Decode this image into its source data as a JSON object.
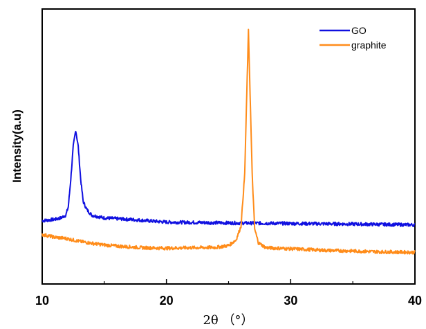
{
  "chart_data": {
    "type": "line",
    "xlabel": "2θ （°）",
    "ylabel": "Intensity(a.u)",
    "xlim": [
      10,
      40
    ],
    "ylim": [
      0,
      1
    ],
    "x_ticks": [
      10,
      20,
      30,
      40
    ],
    "y_ticks_labeled": false,
    "grid": false,
    "legend": "top-right",
    "series": [
      {
        "name": "GO",
        "color": "#1010e0",
        "points": [
          [
            10,
            0.23
          ],
          [
            11,
            0.235
          ],
          [
            11.5,
            0.24
          ],
          [
            11.9,
            0.25
          ],
          [
            12.1,
            0.28
          ],
          [
            12.3,
            0.38
          ],
          [
            12.5,
            0.5
          ],
          [
            12.7,
            0.56
          ],
          [
            12.9,
            0.5
          ],
          [
            13.1,
            0.38
          ],
          [
            13.3,
            0.3
          ],
          [
            13.6,
            0.27
          ],
          [
            14,
            0.25
          ],
          [
            15,
            0.24
          ],
          [
            17,
            0.235
          ],
          [
            20,
            0.225
          ],
          [
            25,
            0.222
          ],
          [
            30,
            0.22
          ],
          [
            35,
            0.218
          ],
          [
            40,
            0.215
          ]
        ]
      },
      {
        "name": "graphite",
        "color": "#ff8c1a",
        "points": [
          [
            10,
            0.18
          ],
          [
            11,
            0.17
          ],
          [
            12,
            0.165
          ],
          [
            13,
            0.155
          ],
          [
            14,
            0.148
          ],
          [
            15,
            0.142
          ],
          [
            16,
            0.138
          ],
          [
            18,
            0.132
          ],
          [
            20,
            0.13
          ],
          [
            22,
            0.132
          ],
          [
            24,
            0.133
          ],
          [
            25,
            0.14
          ],
          [
            25.6,
            0.16
          ],
          [
            26,
            0.21
          ],
          [
            26.3,
            0.4
          ],
          [
            26.5,
            0.75
          ],
          [
            26.6,
            0.92
          ],
          [
            26.7,
            0.75
          ],
          [
            26.9,
            0.4
          ],
          [
            27.1,
            0.2
          ],
          [
            27.4,
            0.15
          ],
          [
            28,
            0.132
          ],
          [
            30,
            0.128
          ],
          [
            33,
            0.122
          ],
          [
            35,
            0.12
          ],
          [
            37,
            0.117
          ],
          [
            40,
            0.115
          ]
        ]
      }
    ]
  }
}
